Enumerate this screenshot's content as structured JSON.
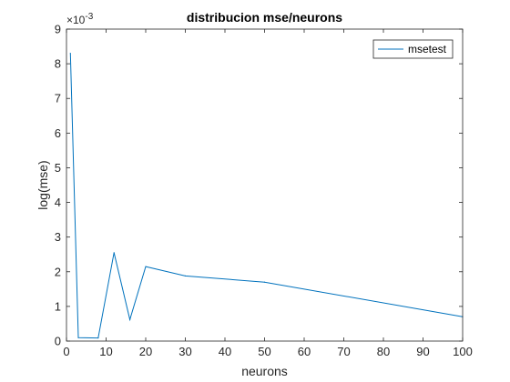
{
  "chart_data": {
    "type": "line",
    "title": "distribucion mse/neurons",
    "xlabel": "neurons",
    "ylabel": "log(mse)",
    "y_exponent_label": "×10",
    "y_exponent_power": "-3",
    "xlim": [
      0,
      100
    ],
    "ylim": [
      0,
      9
    ],
    "xticks": [
      0,
      10,
      20,
      30,
      40,
      50,
      60,
      70,
      80,
      90,
      100
    ],
    "yticks": [
      0,
      1,
      2,
      3,
      4,
      5,
      6,
      7,
      8,
      9
    ],
    "grid": false,
    "legend_position": "top-right",
    "series": [
      {
        "name": "msetest",
        "color": "#0072bd",
        "x": [
          1,
          3,
          8,
          12,
          16,
          20,
          30,
          50,
          100
        ],
        "y": [
          8.3,
          0.1,
          0.09,
          2.55,
          0.62,
          2.15,
          1.88,
          1.7,
          0.7
        ]
      }
    ]
  }
}
